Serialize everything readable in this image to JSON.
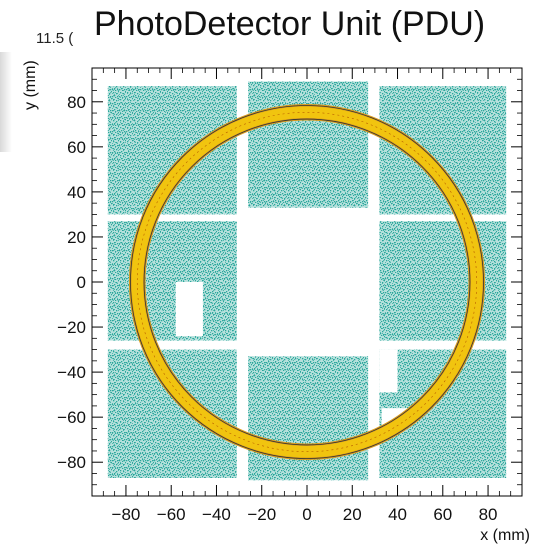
{
  "title": "PhotoDetector Unit (PDU)",
  "subtitle_partial": "11.5 (",
  "chart_data": {
    "type": "scatter",
    "xlabel": "x (mm)",
    "ylabel": "y (mm)",
    "xlim": [
      -95,
      95
    ],
    "ylim": [
      -95,
      95
    ],
    "x_ticks": [
      -80,
      -60,
      -40,
      -20,
      0,
      20,
      40,
      60,
      80
    ],
    "y_ticks": [
      -80,
      -60,
      -40,
      -20,
      0,
      20,
      40,
      60,
      80
    ],
    "x_tick_labels": [
      "−80",
      "−60",
      "−40",
      "−20",
      "0",
      "20",
      "40",
      "60",
      "80"
    ],
    "y_tick_labels": [
      "−80",
      "−60",
      "−40",
      "−20",
      "0",
      "20",
      "40",
      "60",
      "80"
    ],
    "ring": {
      "center": [
        0,
        0
      ],
      "radius": 75,
      "width": 6
    },
    "sensor_tiles": [
      {
        "x": [
          -88,
          -31
        ],
        "y": [
          30,
          87
        ]
      },
      {
        "x": [
          -26,
          27
        ],
        "y": [
          33,
          89
        ]
      },
      {
        "x": [
          32,
          88
        ],
        "y": [
          30,
          87
        ]
      },
      {
        "x": [
          -88,
          -31
        ],
        "y": [
          -26,
          27
        ]
      },
      {
        "x": [
          32,
          88
        ],
        "y": [
          -26,
          27
        ]
      },
      {
        "x": [
          -88,
          -31
        ],
        "y": [
          -87,
          -30
        ]
      },
      {
        "x": [
          -26,
          27
        ],
        "y": [
          -88,
          -33
        ]
      },
      {
        "x": [
          32,
          88
        ],
        "y": [
          -87,
          -30
        ]
      }
    ],
    "gaps": [
      {
        "x": [
          -58,
          -46
        ],
        "y": [
          -24,
          0
        ]
      },
      {
        "x": [
          32,
          40
        ],
        "y": [
          -49,
          -30
        ]
      },
      {
        "x": [
          33,
          45
        ],
        "y": [
          -65,
          -56
        ]
      }
    ],
    "colors": {
      "tile_hits": "#2aa79b",
      "ring_outer": "#d99a1e",
      "ring_inner": "#f1c40f",
      "ring_line": "#333333",
      "frame": "#000000"
    },
    "grid": false
  }
}
